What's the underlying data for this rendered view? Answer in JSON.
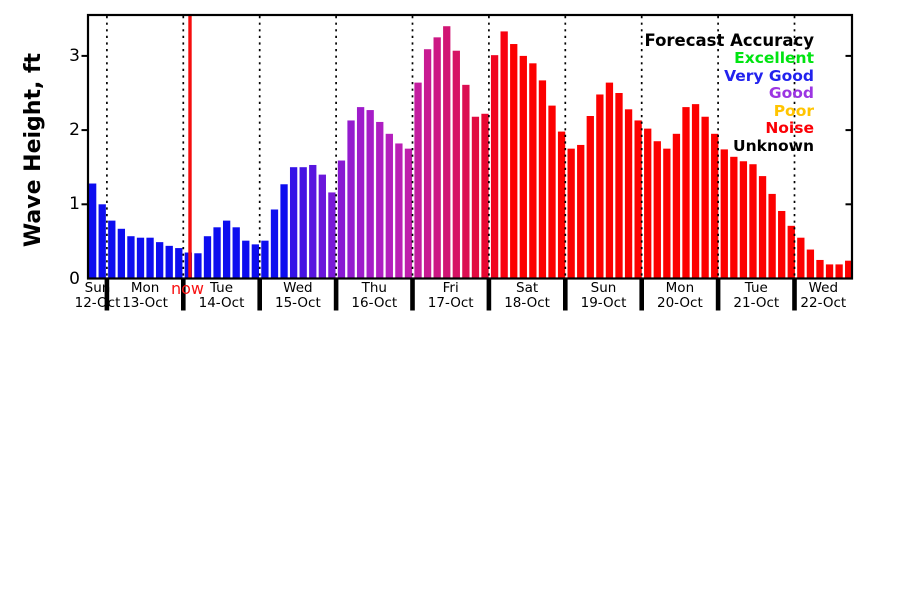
{
  "chart_data": {
    "type": "bar",
    "title": "",
    "ylabel": "Wave Height, ft",
    "ylim": [
      0,
      3.56
    ],
    "yticks": [
      0,
      1,
      2,
      3
    ],
    "grid": "vertical-dotted-day-separators",
    "legend_position": "top-right",
    "background": "#FFFFFF",
    "axis_color": "#000000",
    "days": [
      {
        "name": "Sun",
        "date": "12-Oct",
        "values": [
          1.28,
          1.0
        ]
      },
      {
        "name": "Mon",
        "date": "13-Oct",
        "values": [
          0.78,
          0.67,
          0.57,
          0.55,
          0.55,
          0.49,
          0.44,
          0.41
        ]
      },
      {
        "name": "Tue",
        "date": "14-Oct",
        "values": [
          0.35,
          0.34,
          0.57,
          0.69,
          0.78,
          0.69,
          0.51,
          0.46
        ]
      },
      {
        "name": "Wed",
        "date": "15-Oct",
        "values": [
          0.51,
          0.93,
          1.27,
          1.5,
          1.5,
          1.53,
          1.4,
          1.16
        ]
      },
      {
        "name": "Thu",
        "date": "16-Oct",
        "values": [
          1.59,
          2.13,
          2.31,
          2.27,
          2.11,
          1.95,
          1.82,
          1.75
        ]
      },
      {
        "name": "Fri",
        "date": "17-Oct",
        "values": [
          2.64,
          3.09,
          3.25,
          3.4,
          3.07,
          2.61,
          2.18,
          2.22
        ]
      },
      {
        "name": "Sat",
        "date": "18-Oct",
        "values": [
          3.01,
          3.33,
          3.16,
          3.0,
          2.9,
          2.67,
          2.33,
          1.98
        ]
      },
      {
        "name": "Sun",
        "date": "19-Oct",
        "values": [
          1.75,
          1.8,
          2.19,
          2.48,
          2.64,
          2.5,
          2.28,
          2.13
        ]
      },
      {
        "name": "Mon",
        "date": "20-Oct",
        "values": [
          2.02,
          1.85,
          1.75,
          1.95,
          2.31,
          2.35,
          2.18,
          1.95
        ]
      },
      {
        "name": "Tue",
        "date": "21-Oct",
        "values": [
          1.74,
          1.64,
          1.58,
          1.54,
          1.38,
          1.14,
          0.91,
          0.71
        ]
      },
      {
        "name": "Wed",
        "date": "22-Oct",
        "values": [
          0.55,
          0.39,
          0.25,
          0.19,
          0.19,
          0.24
        ]
      }
    ],
    "bar_colors": [
      "#0D0DEF",
      "#0D0DEF",
      "#0D0DEF",
      "#0D0DEF",
      "#0D0DEF",
      "#0D0DEF",
      "#0D0DEF",
      "#0D0DEF",
      "#0D0DEF",
      "#0D0DEF",
      "#0D0DEF",
      "#0D0DEF",
      "#0D0DEF",
      "#0D0DEF",
      "#0D0DEF",
      "#0D0DEF",
      "#0D0DEF",
      "#0D0DEF",
      "#0D0DEF",
      "#0D0DEF",
      "#0D0DEF",
      "#3412E7",
      "#4613E3",
      "#5815DF",
      "#6A17DB",
      "#7A19D7",
      "#8819D3",
      "#941BCF",
      "#9E1CCB",
      "#A61DC7",
      "#AE1EC2",
      "#B41FBD",
      "#BA1FB5",
      "#BE1EAB",
      "#C31D9F",
      "#C81B92",
      "#CC1884",
      "#D11574",
      "#D61264",
      "#DB0E52",
      "#E10B40",
      "#E80731",
      "#F00420",
      "#F80210",
      "#FC0000",
      "#FC0000",
      "#FC0000",
      "#FC0000",
      "#FC0000",
      "#FC0000",
      "#FC0000",
      "#FC0000",
      "#FC0000",
      "#FC0000",
      "#FC0000",
      "#FC0000",
      "#FC0000",
      "#FC0000",
      "#FC0000",
      "#FC0000",
      "#FC0000",
      "#FC0000",
      "#FC0000",
      "#FC0000",
      "#FC0000",
      "#FC0000",
      "#FC0000",
      "#FC0000",
      "#FC0000",
      "#FC0000",
      "#FC0000",
      "#FC0000",
      "#FC0000",
      "#FC0000",
      "#FC0000",
      "#FC0000",
      "#FC0000",
      "#FC0000",
      "#FC0000",
      "#FC0000"
    ],
    "now_marker": {
      "label": "now",
      "color": "#F81212",
      "line_color": "#F50F0F",
      "after_day_index": 1
    },
    "legend": {
      "title": "Forecast Accuracy",
      "entries": [
        {
          "label": "Excellent",
          "color": "#00E411"
        },
        {
          "label": "Very Good",
          "color": "#2222EE"
        },
        {
          "label": "Good",
          "color": "#9C35E2"
        },
        {
          "label": "Poor",
          "color": "#FFC400"
        },
        {
          "label": "Noise",
          "color": "#FB0006"
        },
        {
          "label": "Unknown",
          "color": "#000000"
        }
      ]
    }
  }
}
